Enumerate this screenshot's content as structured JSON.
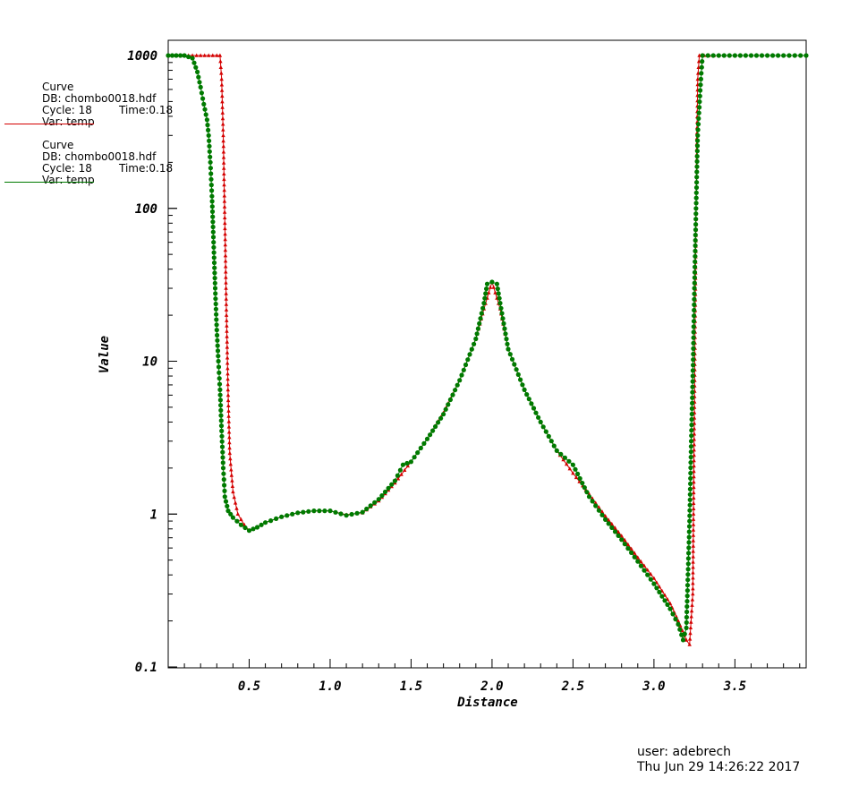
{
  "chart_data": {
    "type": "line",
    "xlabel": "Distance",
    "ylabel": "Value",
    "yscale": "log",
    "xlim": [
      0.0,
      3.94
    ],
    "ylim": [
      0.1,
      1000
    ],
    "x_ticks": [
      "0.5",
      "1.0",
      "1.5",
      "2.0",
      "2.5",
      "3.0",
      "3.5"
    ],
    "y_ticks": [
      "0.1",
      "1",
      "10",
      "100",
      "1000"
    ],
    "grid": false,
    "legend_position": "left",
    "series": [
      {
        "color": "#d40000",
        "marker": "triangle",
        "points": [
          [
            0.0,
            1000
          ],
          [
            0.05,
            1000
          ],
          [
            0.1,
            1000
          ],
          [
            0.15,
            1000
          ],
          [
            0.2,
            1000
          ],
          [
            0.25,
            1000
          ],
          [
            0.3,
            1000
          ],
          [
            0.32,
            1000
          ],
          [
            0.33,
            700
          ],
          [
            0.34,
            300
          ],
          [
            0.35,
            80
          ],
          [
            0.36,
            20
          ],
          [
            0.37,
            6
          ],
          [
            0.38,
            2.5
          ],
          [
            0.4,
            1.4
          ],
          [
            0.43,
            1.0
          ],
          [
            0.47,
            0.85
          ],
          [
            0.5,
            0.78
          ],
          [
            0.55,
            0.82
          ],
          [
            0.6,
            0.88
          ],
          [
            0.7,
            0.96
          ],
          [
            0.8,
            1.02
          ],
          [
            0.9,
            1.05
          ],
          [
            1.0,
            1.05
          ],
          [
            1.1,
            0.99
          ],
          [
            1.2,
            1.02
          ],
          [
            1.3,
            1.22
          ],
          [
            1.4,
            1.6
          ],
          [
            1.5,
            2.2
          ],
          [
            1.6,
            3.1
          ],
          [
            1.7,
            4.6
          ],
          [
            1.8,
            7.5
          ],
          [
            1.9,
            14
          ],
          [
            1.95,
            22
          ],
          [
            2.0,
            33
          ],
          [
            2.05,
            22
          ],
          [
            2.1,
            12
          ],
          [
            2.2,
            6.5
          ],
          [
            2.3,
            4.0
          ],
          [
            2.4,
            2.6
          ],
          [
            2.5,
            1.85
          ],
          [
            2.6,
            1.35
          ],
          [
            2.7,
            0.97
          ],
          [
            2.8,
            0.72
          ],
          [
            2.9,
            0.52
          ],
          [
            3.0,
            0.38
          ],
          [
            3.1,
            0.26
          ],
          [
            3.15,
            0.2
          ],
          [
            3.2,
            0.15
          ],
          [
            3.22,
            0.14
          ],
          [
            3.24,
            0.3
          ],
          [
            3.25,
            5
          ],
          [
            3.26,
            100
          ],
          [
            3.27,
            700
          ],
          [
            3.28,
            1000
          ],
          [
            3.4,
            1000
          ],
          [
            3.6,
            1000
          ],
          [
            3.8,
            1000
          ],
          [
            3.94,
            1000
          ]
        ]
      },
      {
        "color": "#007a00",
        "marker": "circle",
        "points": [
          [
            0.0,
            1000
          ],
          [
            0.05,
            1000
          ],
          [
            0.1,
            1000
          ],
          [
            0.15,
            960
          ],
          [
            0.18,
            780
          ],
          [
            0.2,
            620
          ],
          [
            0.22,
            480
          ],
          [
            0.24,
            380
          ],
          [
            0.25,
            300
          ],
          [
            0.26,
            200
          ],
          [
            0.27,
            120
          ],
          [
            0.28,
            60
          ],
          [
            0.29,
            30
          ],
          [
            0.3,
            16
          ],
          [
            0.31,
            10
          ],
          [
            0.32,
            6.5
          ],
          [
            0.33,
            3.5
          ],
          [
            0.34,
            2.0
          ],
          [
            0.35,
            1.3
          ],
          [
            0.37,
            1.05
          ],
          [
            0.4,
            0.95
          ],
          [
            0.45,
            0.85
          ],
          [
            0.5,
            0.78
          ],
          [
            0.55,
            0.82
          ],
          [
            0.6,
            0.88
          ],
          [
            0.7,
            0.96
          ],
          [
            0.8,
            1.02
          ],
          [
            0.9,
            1.05
          ],
          [
            1.0,
            1.05
          ],
          [
            1.1,
            0.98
          ],
          [
            1.2,
            1.03
          ],
          [
            1.3,
            1.25
          ],
          [
            1.4,
            1.65
          ],
          [
            1.45,
            2.1
          ],
          [
            1.5,
            2.2
          ],
          [
            1.6,
            3.1
          ],
          [
            1.7,
            4.5
          ],
          [
            1.8,
            7.5
          ],
          [
            1.9,
            14
          ],
          [
            1.95,
            24
          ],
          [
            1.97,
            32
          ],
          [
            2.0,
            33
          ],
          [
            2.03,
            32
          ],
          [
            2.05,
            24
          ],
          [
            2.1,
            12
          ],
          [
            2.2,
            6.5
          ],
          [
            2.3,
            4.0
          ],
          [
            2.4,
            2.6
          ],
          [
            2.5,
            2.1
          ],
          [
            2.6,
            1.3
          ],
          [
            2.7,
            0.92
          ],
          [
            2.8,
            0.68
          ],
          [
            2.9,
            0.49
          ],
          [
            3.0,
            0.35
          ],
          [
            3.1,
            0.24
          ],
          [
            3.15,
            0.19
          ],
          [
            3.18,
            0.15
          ],
          [
            3.2,
            0.18
          ],
          [
            3.22,
            0.9
          ],
          [
            3.23,
            3.0
          ],
          [
            3.24,
            8
          ],
          [
            3.25,
            30
          ],
          [
            3.26,
            100
          ],
          [
            3.27,
            300
          ],
          [
            3.29,
            700
          ],
          [
            3.3,
            1000
          ],
          [
            3.4,
            1000
          ],
          [
            3.6,
            1000
          ],
          [
            3.8,
            1000
          ],
          [
            3.94,
            1000
          ]
        ]
      }
    ]
  },
  "legend": [
    {
      "line1": "Curve",
      "db": "DB: chombo0018.hdf",
      "cycle": "Cycle: 18",
      "time": "Time:0.18",
      "var": "Var: temp",
      "color": "#d40000"
    },
    {
      "line1": "Curve",
      "db": "DB: chombo0018.hdf",
      "cycle": "Cycle: 18",
      "time": "Time:0.18",
      "var": "Var: temp",
      "color": "#007a00"
    }
  ],
  "footer": {
    "user": "user: adebrech",
    "date": "Thu Jun 29 14:26:22 2017"
  }
}
